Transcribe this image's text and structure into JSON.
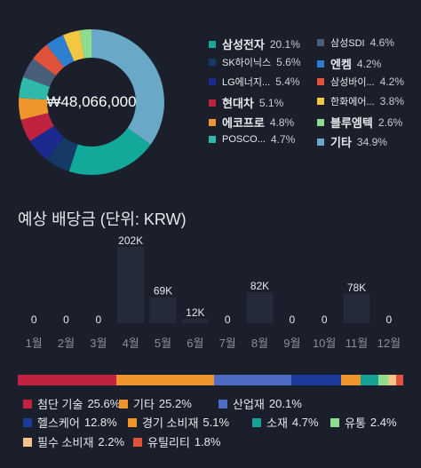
{
  "portfolio": {
    "total": "₩48,066,000",
    "holdings": [
      {
        "name": "삼성전자",
        "pct": "20.1%",
        "value": 20.1,
        "color": "#12a89a",
        "small": false
      },
      {
        "name": "삼성SDI",
        "pct": "4.6%",
        "value": 4.6,
        "color": "#4a5e7a",
        "small": true
      },
      {
        "name": "SK하이닉스",
        "pct": "5.6%",
        "value": 5.6,
        "color": "#163a66",
        "small": true
      },
      {
        "name": "엔켐",
        "pct": "4.2%",
        "value": 4.2,
        "color": "#2f7fd1",
        "small": false
      },
      {
        "name": "LG에너지...",
        "pct": "5.4%",
        "value": 5.4,
        "color": "#1c2a8f",
        "small": true
      },
      {
        "name": "삼성바이...",
        "pct": "4.2%",
        "value": 4.2,
        "color": "#e0533a",
        "small": true
      },
      {
        "name": "현대차",
        "pct": "5.1%",
        "value": 5.1,
        "color": "#c0223f",
        "small": false
      },
      {
        "name": "한화에어...",
        "pct": "3.8%",
        "value": 3.8,
        "color": "#f2c744",
        "small": true
      },
      {
        "name": "에코프로",
        "pct": "4.8%",
        "value": 4.8,
        "color": "#f0952b",
        "small": false
      },
      {
        "name": "블루엠텍",
        "pct": "2.6%",
        "value": 2.6,
        "color": "#8fdc8f",
        "small": false
      },
      {
        "name": "POSCO...",
        "pct": "4.7%",
        "value": 4.7,
        "color": "#2fb9a8",
        "small": true
      },
      {
        "name": "기타",
        "pct": "34.9%",
        "value": 34.9,
        "color": "#6aa8c8",
        "small": false
      }
    ]
  },
  "dividend": {
    "title": "예상 배당금 (단위: KRW)",
    "chart_data": {
      "type": "bar",
      "categories": [
        "1월",
        "2월",
        "3월",
        "4월",
        "5월",
        "6월",
        "7월",
        "8월",
        "9월",
        "10월",
        "11월",
        "12월"
      ],
      "values": [
        0,
        0,
        0,
        202000,
        69000,
        12000,
        0,
        82000,
        0,
        0,
        78000,
        0
      ],
      "labels": [
        "0",
        "0",
        "0",
        "202K",
        "69K",
        "12K",
        "0",
        "82K",
        "0",
        "0",
        "78K",
        "0"
      ]
    }
  },
  "sectors": [
    {
      "name": "첨단 기술",
      "pct": "25.6%",
      "value": 25.6,
      "color": "#c0223f"
    },
    {
      "name": "기타",
      "pct": "25.2%",
      "value": 25.2,
      "color": "#f0952b"
    },
    {
      "name": "산업재",
      "pct": "20.1%",
      "value": 20.1,
      "color": "#4f6cc4"
    },
    {
      "name": "헬스케어",
      "pct": "12.8%",
      "value": 12.8,
      "color": "#1c3a9a"
    },
    {
      "name": "경기 소비재",
      "pct": "5.1%",
      "value": 5.1,
      "color": "#f0952b"
    },
    {
      "name": "소재",
      "pct": "4.7%",
      "value": 4.7,
      "color": "#15a194"
    },
    {
      "name": "유통",
      "pct": "2.4%",
      "value": 2.4,
      "color": "#8fdc8f"
    },
    {
      "name": "필수 소비재",
      "pct": "2.2%",
      "value": 2.2,
      "color": "#f5c48a"
    },
    {
      "name": "유틸리티",
      "pct": "1.8%",
      "value": 1.8,
      "color": "#e0533a"
    }
  ]
}
